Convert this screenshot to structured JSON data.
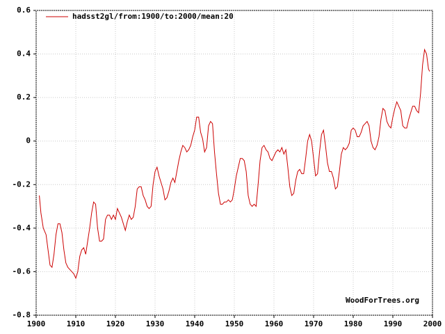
{
  "chart_data": {
    "type": "line",
    "annotation": "WoodForTrees.org",
    "x": [
      1900.8,
      1901.2,
      1901.8,
      1902.5,
      1903,
      1903.5,
      1904,
      1904.5,
      1905,
      1905.5,
      1906,
      1906.5,
      1907,
      1907.5,
      1908,
      1908.5,
      1909,
      1909.5,
      1910,
      1910.5,
      1911,
      1911.5,
      1912,
      1912.5,
      1913,
      1913.5,
      1914,
      1914.5,
      1915,
      1915.5,
      1916,
      1916.5,
      1917,
      1917.5,
      1918,
      1918.5,
      1919,
      1919.5,
      1920,
      1920.5,
      1921,
      1921.5,
      1922,
      1922.5,
      1923,
      1923.5,
      1924,
      1924.5,
      1925,
      1925.5,
      1926,
      1926.5,
      1927,
      1927.5,
      1928,
      1928.5,
      1929,
      1929.5,
      1930,
      1930.5,
      1931,
      1931.5,
      1932,
      1932.5,
      1933,
      1933.5,
      1934,
      1934.5,
      1935,
      1935.5,
      1936,
      1936.5,
      1937,
      1937.5,
      1938,
      1938.5,
      1939,
      1939.5,
      1940,
      1940.5,
      1941,
      1941.5,
      1942,
      1942.5,
      1943,
      1943.5,
      1944,
      1944.5,
      1945,
      1945.5,
      1946,
      1946.5,
      1947,
      1947.5,
      1948,
      1948.5,
      1949,
      1949.5,
      1950,
      1950.5,
      1951,
      1951.5,
      1952,
      1952.5,
      1953,
      1953.5,
      1954,
      1954.5,
      1955,
      1955.5,
      1956,
      1956.5,
      1957,
      1957.5,
      1958,
      1958.5,
      1959,
      1959.5,
      1960,
      1960.5,
      1961,
      1961.5,
      1962,
      1962.5,
      1963,
      1963.5,
      1964,
      1964.5,
      1965,
      1965.5,
      1966,
      1966.5,
      1967,
      1967.5,
      1968,
      1968.5,
      1969,
      1969.5,
      1970,
      1970.5,
      1971,
      1971.5,
      1972,
      1972.5,
      1973,
      1973.5,
      1974,
      1974.5,
      1975,
      1975.5,
      1976,
      1976.5,
      1977,
      1977.5,
      1978,
      1978.5,
      1979,
      1979.5,
      1980,
      1980.5,
      1981,
      1981.5,
      1982,
      1982.5,
      1983,
      1983.5,
      1984,
      1984.5,
      1985,
      1985.5,
      1986,
      1986.5,
      1987,
      1987.5,
      1988,
      1988.5,
      1989,
      1989.5,
      1990,
      1990.5,
      1991,
      1991.5,
      1992,
      1992.5,
      1993,
      1993.5,
      1994,
      1994.5,
      1995,
      1995.5,
      1996,
      1996.5,
      1997,
      1997.5,
      1998,
      1998.5,
      1999,
      1999.3
    ],
    "series": [
      {
        "name": "hadsst2gl/from:1900/to:2000/mean:20",
        "color": "#cc0000",
        "values": [
          -0.25,
          -0.33,
          -0.4,
          -0.43,
          -0.5,
          -0.57,
          -0.58,
          -0.52,
          -0.43,
          -0.38,
          -0.38,
          -0.42,
          -0.5,
          -0.56,
          -0.58,
          -0.59,
          -0.6,
          -0.61,
          -0.63,
          -0.6,
          -0.53,
          -0.5,
          -0.49,
          -0.52,
          -0.46,
          -0.4,
          -0.33,
          -0.28,
          -0.29,
          -0.4,
          -0.46,
          -0.46,
          -0.45,
          -0.36,
          -0.34,
          -0.34,
          -0.36,
          -0.34,
          -0.36,
          -0.31,
          -0.33,
          -0.35,
          -0.38,
          -0.41,
          -0.37,
          -0.34,
          -0.36,
          -0.35,
          -0.3,
          -0.22,
          -0.21,
          -0.21,
          -0.25,
          -0.27,
          -0.3,
          -0.31,
          -0.3,
          -0.2,
          -0.14,
          -0.12,
          -0.16,
          -0.19,
          -0.22,
          -0.27,
          -0.26,
          -0.23,
          -0.19,
          -0.17,
          -0.19,
          -0.14,
          -0.09,
          -0.05,
          -0.02,
          -0.03,
          -0.05,
          -0.04,
          -0.02,
          0.02,
          0.05,
          0.11,
          0.11,
          0.04,
          0.01,
          -0.05,
          -0.03,
          0.07,
          0.09,
          0.08,
          -0.05,
          -0.15,
          -0.24,
          -0.29,
          -0.29,
          -0.28,
          -0.28,
          -0.27,
          -0.28,
          -0.27,
          -0.22,
          -0.16,
          -0.12,
          -0.08,
          -0.08,
          -0.09,
          -0.14,
          -0.25,
          -0.29,
          -0.3,
          -0.29,
          -0.3,
          -0.2,
          -0.09,
          -0.03,
          -0.02,
          -0.04,
          -0.05,
          -0.08,
          -0.09,
          -0.07,
          -0.05,
          -0.04,
          -0.05,
          -0.03,
          -0.06,
          -0.04,
          -0.12,
          -0.21,
          -0.25,
          -0.24,
          -0.18,
          -0.14,
          -0.13,
          -0.15,
          -0.15,
          -0.08,
          0.0,
          0.03,
          0.0,
          -0.08,
          -0.16,
          -0.15,
          -0.05,
          0.03,
          0.05,
          -0.02,
          -0.1,
          -0.14,
          -0.14,
          -0.17,
          -0.22,
          -0.21,
          -0.14,
          -0.06,
          -0.03,
          -0.04,
          -0.03,
          -0.01,
          0.05,
          0.06,
          0.05,
          0.02,
          0.02,
          0.04,
          0.07,
          0.08,
          0.09,
          0.07,
          0.0,
          -0.03,
          -0.04,
          -0.02,
          0.02,
          0.1,
          0.15,
          0.14,
          0.09,
          0.07,
          0.06,
          0.11,
          0.15,
          0.18,
          0.16,
          0.14,
          0.07,
          0.06,
          0.06,
          0.1,
          0.13,
          0.16,
          0.16,
          0.14,
          0.13,
          0.22,
          0.35,
          0.42,
          0.4,
          0.33,
          0.32
        ]
      }
    ],
    "xlim": [
      1900,
      2000
    ],
    "xticks": [
      1900,
      1910,
      1920,
      1930,
      1940,
      1950,
      1960,
      1970,
      1980,
      1990,
      2000
    ],
    "ylim": [
      -0.8,
      0.6
    ],
    "yticks": [
      -0.8,
      -0.6,
      -0.4,
      -0.2,
      0,
      0.2,
      0.4,
      0.6
    ],
    "grid": true,
    "legend": "top-left"
  }
}
